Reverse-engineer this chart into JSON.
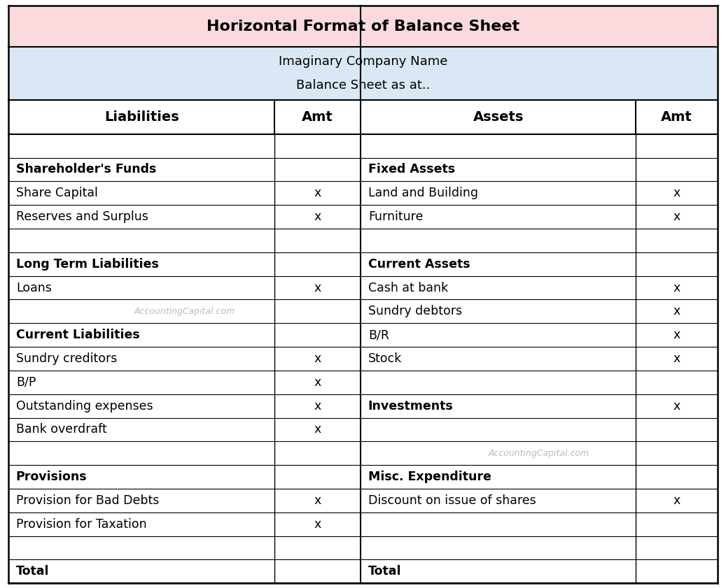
{
  "title": "Horizontal Format of Balance Sheet",
  "subtitle_line1": "Imaginary Company Name",
  "subtitle_line2": "Balance Sheet as at..",
  "title_bg": "#FADADD",
  "subtitle_bg": "#DAE8F5",
  "watermark_text": "AccountingCapital.com",
  "col_headers": [
    "Liabilities",
    "Amt",
    "Assets",
    "Amt"
  ],
  "title_fontsize": 16,
  "subtitle_fontsize": 13,
  "header_fontsize": 14,
  "body_fontsize": 12.5,
  "watermark_fontsize": 9,
  "rows": [
    {
      "type": "empty",
      "left": "",
      "left_amt": "",
      "right": "",
      "right_amt": ""
    },
    {
      "type": "bold",
      "left": "Shareholder's Funds",
      "left_amt": "",
      "right": "Fixed Assets",
      "right_amt": ""
    },
    {
      "type": "normal",
      "left": "Share Capital",
      "left_amt": "x",
      "right": "Land and Building",
      "right_amt": "x"
    },
    {
      "type": "normal",
      "left": "Reserves and Surplus",
      "left_amt": "x",
      "right": "Furniture",
      "right_amt": "x"
    },
    {
      "type": "empty",
      "left": "",
      "left_amt": "",
      "right": "",
      "right_amt": ""
    },
    {
      "type": "bold",
      "left": "Long Term Liabilities",
      "left_amt": "",
      "right": "Current Assets",
      "right_amt": ""
    },
    {
      "type": "normal",
      "left": "Loans",
      "left_amt": "x",
      "right": "Cash at bank",
      "right_amt": "x"
    },
    {
      "type": "wm_left",
      "left": "",
      "left_amt": "",
      "right": "Sundry debtors",
      "right_amt": "x"
    },
    {
      "type": "mixed",
      "left": "Current Liabilities",
      "left_amt": "",
      "right": "B/R",
      "right_amt": "x",
      "left_bold": true,
      "right_bold": false
    },
    {
      "type": "normal",
      "left": "Sundry creditors",
      "left_amt": "x",
      "right": "Stock",
      "right_amt": "x"
    },
    {
      "type": "normal",
      "left": "B/P",
      "left_amt": "x",
      "right": "",
      "right_amt": ""
    },
    {
      "type": "mixed",
      "left": "Outstanding expenses",
      "left_amt": "x",
      "right": "Investments",
      "right_amt": "x",
      "left_bold": false,
      "right_bold": true
    },
    {
      "type": "normal",
      "left": "Bank overdraft",
      "left_amt": "x",
      "right": "",
      "right_amt": ""
    },
    {
      "type": "wm_right",
      "left": "",
      "left_amt": "",
      "right": "",
      "right_amt": ""
    },
    {
      "type": "bold",
      "left": "Provisions",
      "left_amt": "",
      "right": "Misc. Expenditure",
      "right_amt": ""
    },
    {
      "type": "normal",
      "left": "Provision for Bad Debts",
      "left_amt": "x",
      "right": "Discount on issue of shares",
      "right_amt": "x"
    },
    {
      "type": "normal",
      "left": "Provision for Taxation",
      "left_amt": "x",
      "right": "",
      "right_amt": ""
    },
    {
      "type": "empty",
      "left": "",
      "left_amt": "",
      "right": "",
      "right_amt": ""
    },
    {
      "type": "total",
      "left": "Total",
      "left_amt": "",
      "right": "Total",
      "right_amt": ""
    }
  ]
}
